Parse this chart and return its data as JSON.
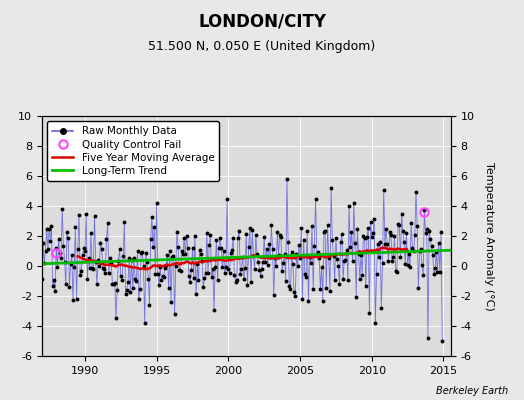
{
  "title": "LONDON/CITY",
  "subtitle": "51.500 N, 0.050 E (United Kingdom)",
  "ylabel": "Temperature Anomaly (°C)",
  "watermark": "Berkeley Earth",
  "xlim": [
    1987.0,
    2015.5
  ],
  "ylim": [
    -6,
    10
  ],
  "yticks": [
    -6,
    -4,
    -2,
    0,
    2,
    4,
    6,
    8,
    10
  ],
  "xticks": [
    1990,
    1995,
    2000,
    2005,
    2010,
    2015
  ],
  "bg_color": "#e8e8e8",
  "plot_bg_color": "#dcdcdc",
  "grid_color": "#ffffff",
  "raw_color": "#6666dd",
  "raw_dot_color": "#000000",
  "moving_avg_color": "#dd0000",
  "trend_color": "#00bb00",
  "qc_fail_color": "#ff44ff",
  "legend_entries": [
    "Raw Monthly Data",
    "Quality Control Fail",
    "Five Year Moving Average",
    "Long-Term Trend"
  ],
  "qc_fail_points": {
    "times": [
      1988.0,
      2013.667
    ],
    "values": [
      0.9,
      3.6
    ]
  },
  "trend_times": [
    1987.0,
    2015.5
  ],
  "trend_values": [
    0.15,
    1.05
  ]
}
